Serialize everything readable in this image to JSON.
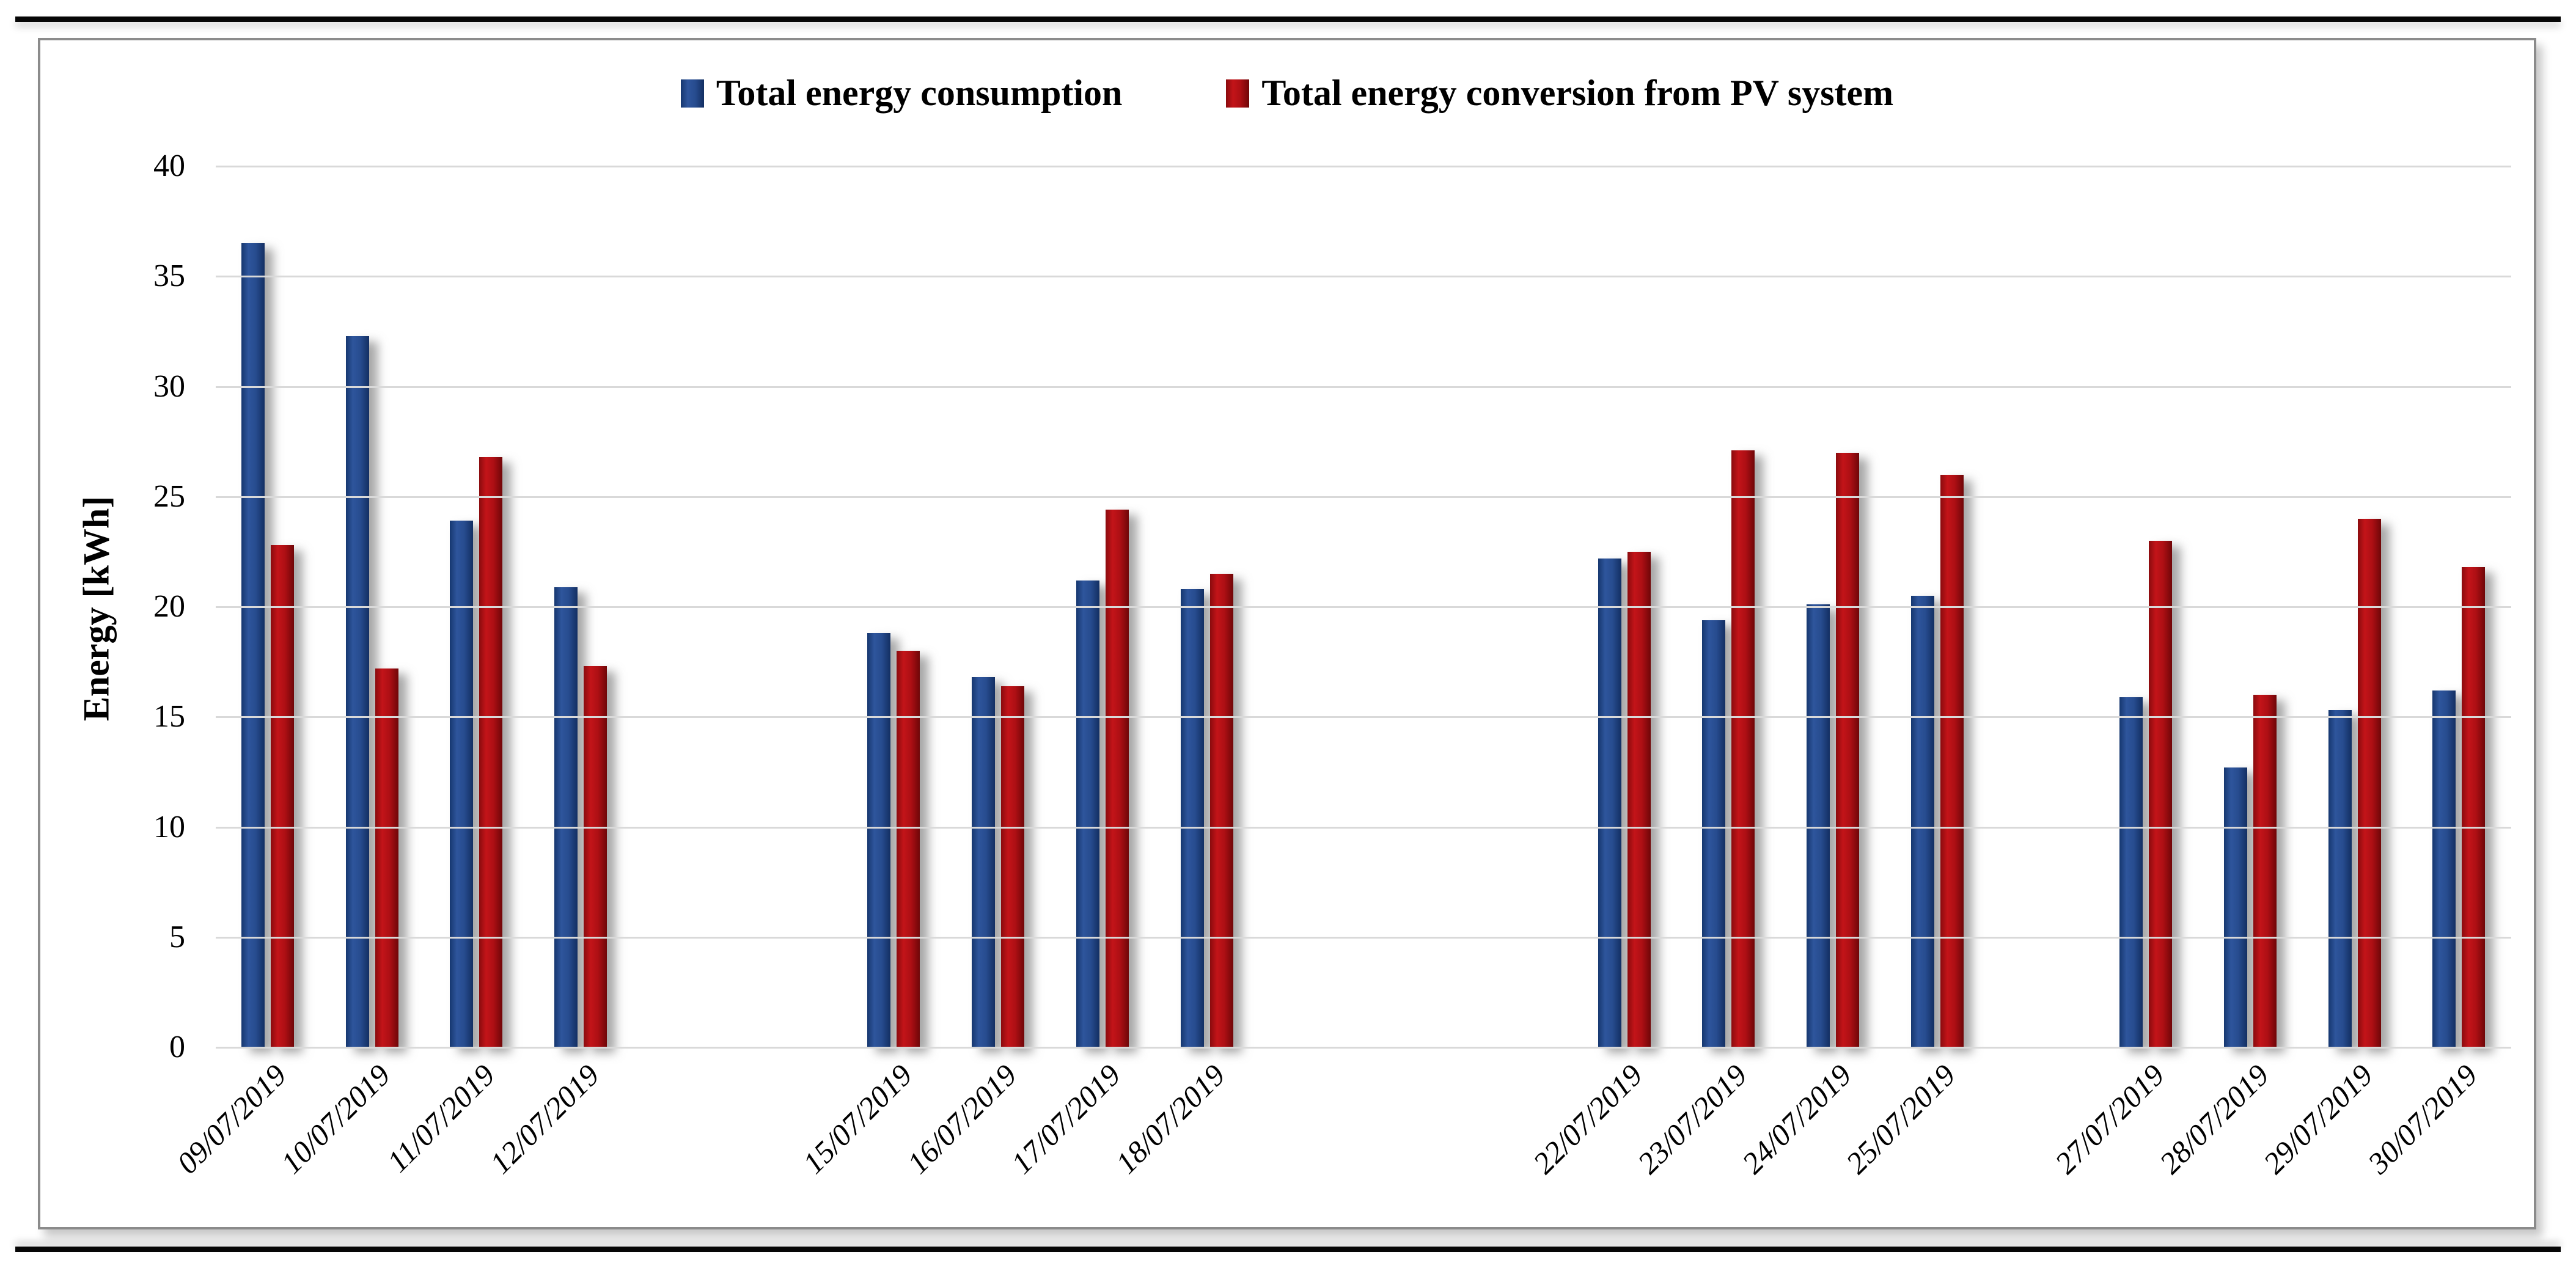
{
  "legend": [
    {
      "label": "Total energy consumption",
      "color": "#2a4d90"
    },
    {
      "label": "Total energy conversion from PV system",
      "color": "#b01016"
    }
  ],
  "y_axis": {
    "title": "Energy [kWh]"
  },
  "chart_data": {
    "type": "bar",
    "title": "",
    "xlabel": "",
    "ylabel": "Energy [kWh]",
    "ylim": [
      0,
      40
    ],
    "yticks": [
      0,
      5,
      10,
      15,
      20,
      25,
      30,
      35,
      40
    ],
    "grid": "horizontal",
    "legend_position": "top-center",
    "note": "date axis is continuous; blank categories are days without bars",
    "categories": [
      "09/07/2019",
      "10/07/2019",
      "11/07/2019",
      "12/07/2019",
      "",
      "",
      "15/07/2019",
      "16/07/2019",
      "17/07/2019",
      "18/07/2019",
      "",
      "",
      "",
      "22/07/2019",
      "23/07/2019",
      "24/07/2019",
      "25/07/2019",
      "",
      "27/07/2019",
      "28/07/2019",
      "29/07/2019",
      "30/07/2019"
    ],
    "series": [
      {
        "name": "Total energy consumption",
        "color": "#2a4d90",
        "values": [
          36.5,
          32.3,
          23.9,
          20.9,
          null,
          null,
          18.8,
          16.8,
          21.2,
          20.8,
          null,
          null,
          null,
          22.2,
          19.4,
          20.1,
          20.5,
          null,
          15.9,
          12.7,
          15.3,
          16.2
        ]
      },
      {
        "name": "Total energy conversion from PV system",
        "color": "#b01016",
        "values": [
          22.8,
          17.2,
          26.8,
          17.3,
          null,
          null,
          18.0,
          16.4,
          24.4,
          21.5,
          null,
          null,
          null,
          22.5,
          27.1,
          27.0,
          26.0,
          null,
          23.0,
          16.0,
          24.0,
          21.8
        ]
      }
    ]
  }
}
